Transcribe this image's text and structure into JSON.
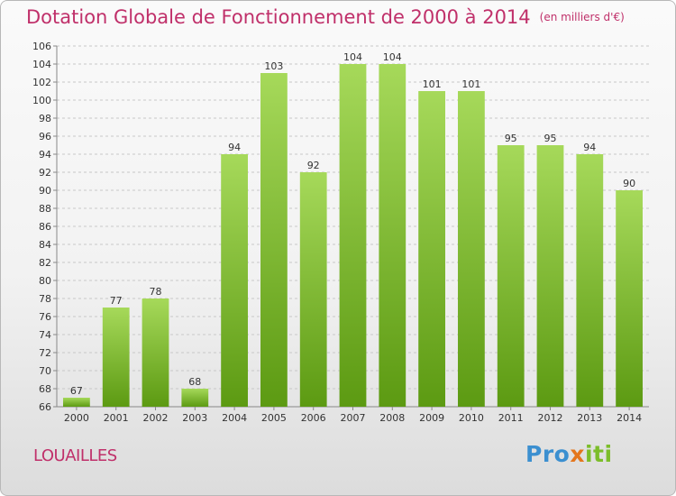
{
  "header": {
    "title": "Dotation Globale de Fonctionnement de 2000 à 2014",
    "unit": "(en milliers d'€)"
  },
  "footer": {
    "commune": "LOUAILLES",
    "logo_parts": [
      "Pro",
      "x",
      "iti"
    ]
  },
  "colors": {
    "accent": "#c0306a",
    "bar_top": "#a6d95a",
    "bar_bottom": "#5c9a12"
  },
  "chart_data": {
    "type": "bar",
    "title": "Dotation Globale de Fonctionnement de 2000 à 2014",
    "categories": [
      "2000",
      "2001",
      "2002",
      "2003",
      "2004",
      "2005",
      "2006",
      "2007",
      "2008",
      "2009",
      "2010",
      "2011",
      "2012",
      "2013",
      "2014"
    ],
    "values": [
      67,
      77,
      78,
      68,
      94,
      103,
      92,
      104,
      104,
      101,
      101,
      95,
      95,
      94,
      90
    ],
    "ylim": [
      66,
      106
    ],
    "ytick_step": 2,
    "grid": true,
    "xlabel": "",
    "ylabel": ""
  }
}
